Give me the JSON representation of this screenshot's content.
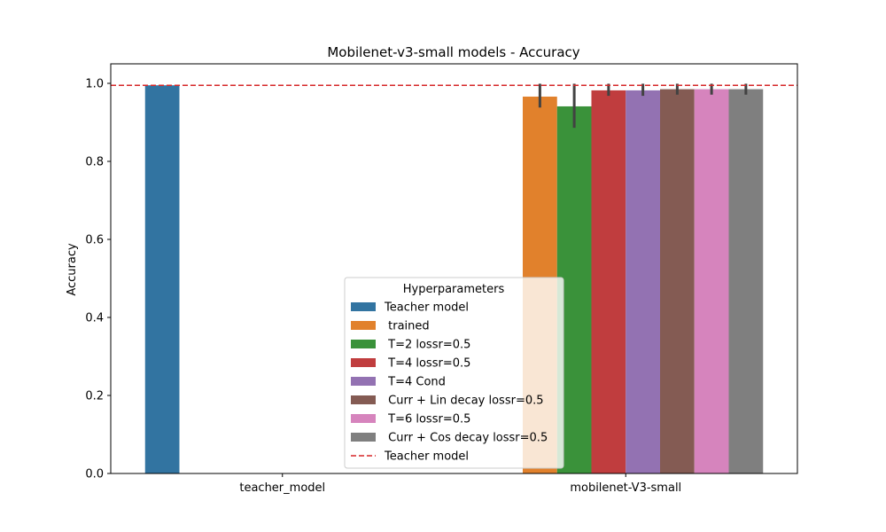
{
  "chart_data": {
    "type": "bar",
    "title": "Mobilenet-v3-small models - Accuracy",
    "xlabel": "",
    "ylabel": "Accuracy",
    "ylim": [
      0,
      1.05
    ],
    "yticks": [
      "0.0",
      "0.2",
      "0.4",
      "0.6",
      "0.8",
      "1.0"
    ],
    "categories": [
      "teacher_model",
      "mobilenet-V3-small"
    ],
    "legend_title": "Hyperparameters",
    "legend_position": "lower center",
    "grid": false,
    "series": [
      {
        "name": "Teacher model",
        "color": "#3274a1",
        "values": [
          0.995,
          null
        ],
        "error": [
          null,
          null
        ]
      },
      {
        "name": " trained",
        "color": "#e1812c",
        "values": [
          null,
          0.966
        ],
        "error": [
          null,
          [
            0.938,
            0.999
          ]
        ]
      },
      {
        "name": " T=2 lossr=0.5",
        "color": "#3a923a",
        "values": [
          null,
          0.941
        ],
        "error": [
          null,
          [
            0.886,
            0.999
          ]
        ]
      },
      {
        "name": " T=4 lossr=0.5",
        "color": "#c03d3e",
        "values": [
          null,
          0.982
        ],
        "error": [
          null,
          [
            0.968,
            0.999
          ]
        ]
      },
      {
        "name": " T=4 Cond",
        "color": "#9372b2",
        "values": [
          null,
          0.982
        ],
        "error": [
          null,
          [
            0.968,
            0.999
          ]
        ]
      },
      {
        "name": " Curr + Lin decay lossr=0.5",
        "color": "#845b53",
        "values": [
          null,
          0.985
        ],
        "error": [
          null,
          [
            0.971,
            0.999
          ]
        ]
      },
      {
        "name": " T=6 lossr=0.5",
        "color": "#d684bd",
        "values": [
          null,
          0.985
        ],
        "error": [
          null,
          [
            0.971,
            0.999
          ]
        ]
      },
      {
        "name": " Curr + Cos decay lossr=0.5",
        "color": "#7f7f7f",
        "values": [
          null,
          0.985
        ],
        "error": [
          null,
          [
            0.971,
            0.999
          ]
        ]
      }
    ],
    "reference_line": {
      "name": "Teacher model",
      "value": 0.995,
      "color": "#d62728",
      "style": "dashed"
    }
  }
}
